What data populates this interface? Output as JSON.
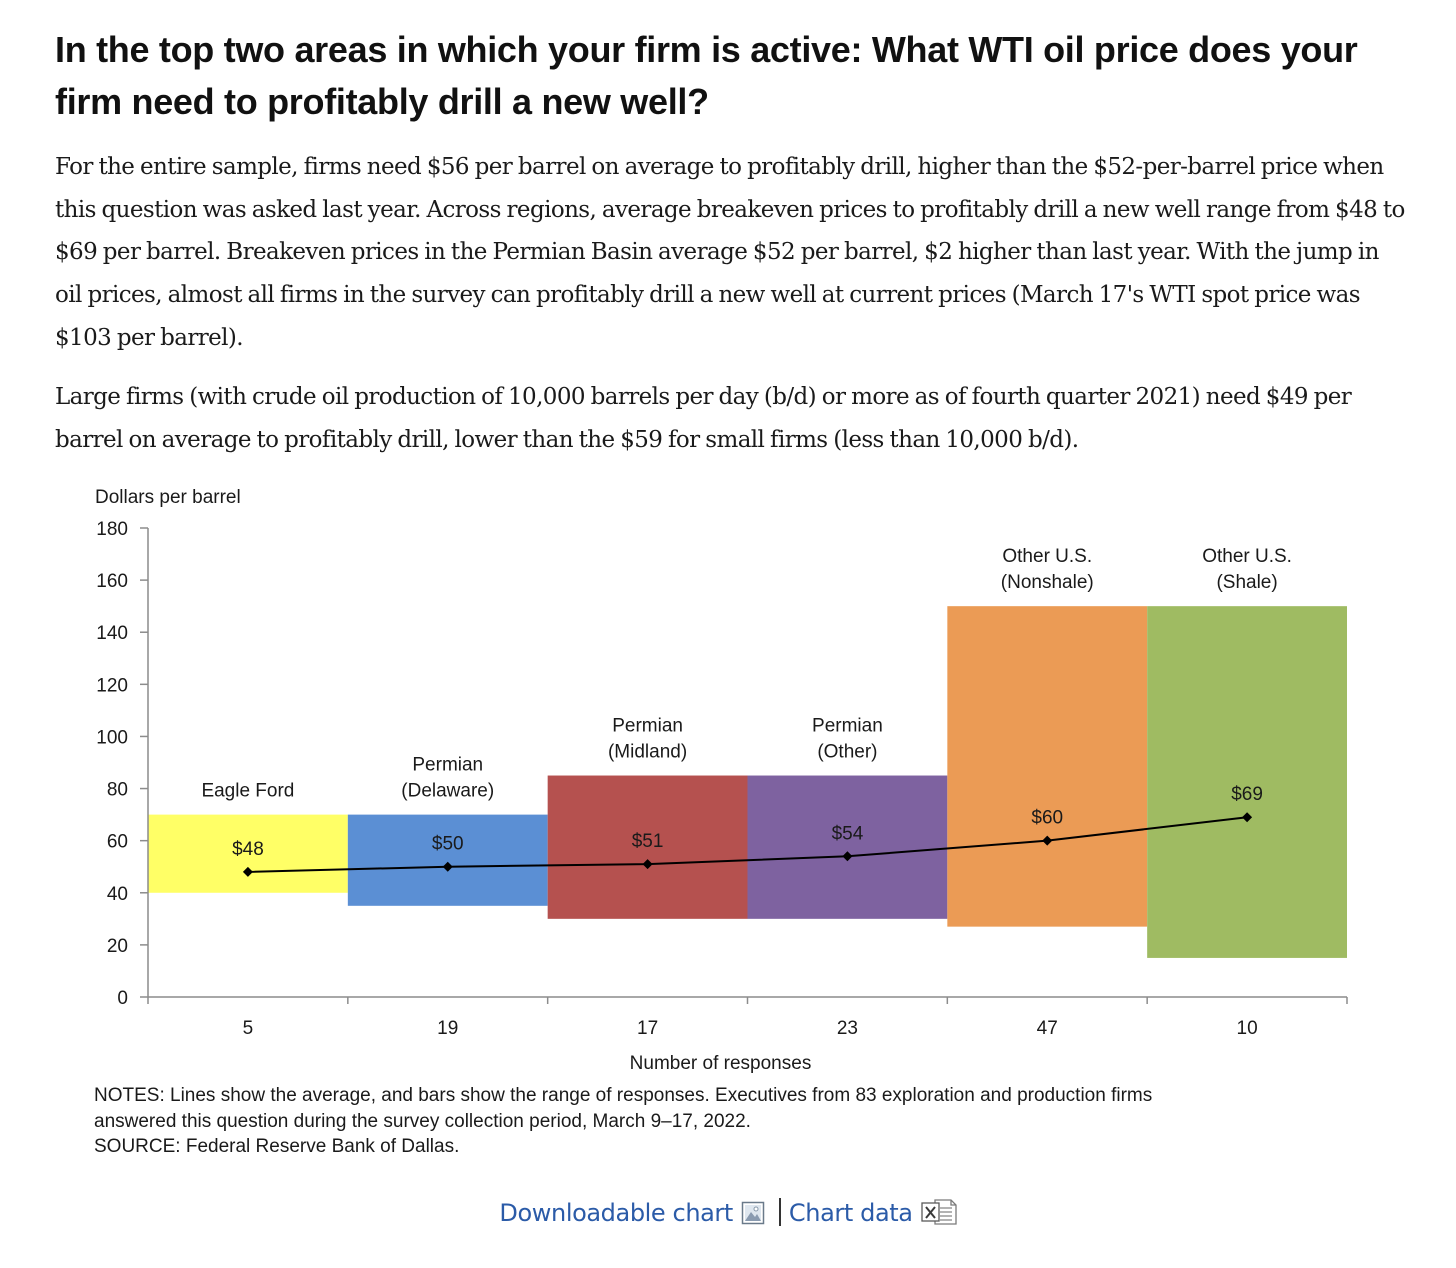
{
  "heading": "In the top two areas in which your firm is active: What WTI oil price does your firm need to profitably drill a new well?",
  "paragraphs": [
    "For the entire sample, firms need $56 per barrel on average to profitably drill, higher than the $52-per-barrel price when this question was asked last year. Across regions, average breakeven prices to profitably drill a new well range from $48 to $69 per barrel. Breakeven prices in the Permian Basin average $52 per barrel, $2 higher than last year. With the jump in oil prices, almost all firms in the survey can profitably drill a new well at current prices (March 17's WTI spot price was $103 per barrel).",
    "Large firms (with crude oil production of 10,000 barrels per day (b/d) or more as of fourth quarter 2021) need $49 per barrel on average to profitably drill, lower than the $59 for small firms (less than 10,000 b/d)."
  ],
  "chart_data": {
    "type": "bar",
    "ylabel": "Dollars per barrel",
    "xlabel": "Number of responses",
    "ylim": [
      0,
      180
    ],
    "yticks": [
      0,
      20,
      40,
      60,
      80,
      100,
      120,
      140,
      160,
      180
    ],
    "grid": false,
    "categories": [
      {
        "name_lines": [
          "Eagle Ford"
        ],
        "responses": "5",
        "range_low": 40,
        "range_high": 70,
        "average": 48,
        "average_label": "$48",
        "color": "#ffff66"
      },
      {
        "name_lines": [
          "Permian",
          "(Delaware)"
        ],
        "responses": "19",
        "range_low": 35,
        "range_high": 70,
        "average": 50,
        "average_label": "$50",
        "color": "#5b8fd4"
      },
      {
        "name_lines": [
          "Permian",
          "(Midland)"
        ],
        "responses": "17",
        "range_low": 30,
        "range_high": 85,
        "average": 51,
        "average_label": "$51",
        "color": "#b5514f"
      },
      {
        "name_lines": [
          "Permian",
          "(Other)"
        ],
        "responses": "23",
        "range_low": 30,
        "range_high": 85,
        "average": 54,
        "average_label": "$54",
        "color": "#7e62a0"
      },
      {
        "name_lines": [
          "Other U.S.",
          "(Nonshale)"
        ],
        "responses": "47",
        "range_low": 27,
        "range_high": 150,
        "average": 60,
        "average_label": "$60",
        "color": "#eb9b55"
      },
      {
        "name_lines": [
          "Other U.S.",
          "(Shale)"
        ],
        "responses": "10",
        "range_low": 15,
        "range_high": 150,
        "average": 69,
        "average_label": "$69",
        "color": "#9fbb62"
      }
    ],
    "line_color": "#000000"
  },
  "notes": [
    "NOTES: Lines show the average, and bars show the range of responses. Executives from 83 exploration and production firms",
    "answered this question during the survey collection period, March 9–17, 2022.",
    "SOURCE: Federal Reserve Bank of Dallas."
  ],
  "links": {
    "downloadable": "Downloadable chart",
    "data": "Chart data"
  },
  "icons": [
    "image-icon",
    "excel-icon"
  ]
}
